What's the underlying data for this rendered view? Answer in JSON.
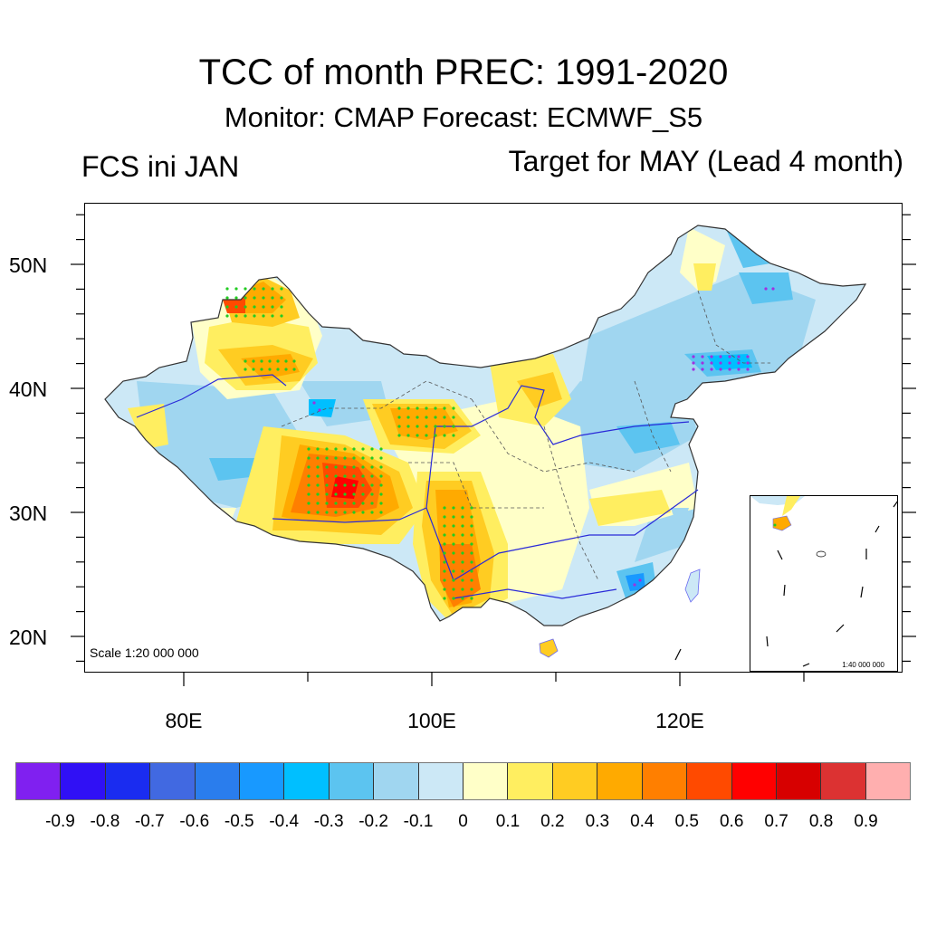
{
  "title": {
    "main": "TCC of month PREC: 1991-2020",
    "subtitle": "Monitor: CMAP   Forecast: ECMWF_S5",
    "left_label": "FCS ini JAN",
    "right_label": "Target for MAY (Lead 4 month)"
  },
  "map": {
    "region": "China",
    "scale_main": "Scale 1:20 000 000",
    "scale_inset": "1:40 000 000",
    "lat_labels": [
      "50N",
      "40N",
      "30N",
      "20N"
    ],
    "lon_labels": [
      "80E",
      "100E",
      "120E"
    ],
    "significance_markers": {
      "positive": "green dots",
      "negative": "purple dots",
      "positive_color": "#22cc22",
      "negative_color": "#a030e0"
    },
    "river_color": "#2a2ad8",
    "boundary_color": "#333333"
  },
  "colorbar": {
    "colors": [
      "#8020f0",
      "#3010f5",
      "#1a2cf0",
      "#4169e1",
      "#2a7ded",
      "#1899ff",
      "#00bfff",
      "#5cc4f0",
      "#a0d6f0",
      "#cce8f6",
      "#ffffc8",
      "#ffee60",
      "#ffcc22",
      "#ffaa00",
      "#ff7f00",
      "#ff4a00",
      "#ff0000",
      "#d70000",
      "#dc3232",
      "#ffafaf"
    ],
    "labels": [
      "-0.9",
      "-0.8",
      "-0.7",
      "-0.6",
      "-0.5",
      "-0.4",
      "-0.3",
      "-0.2",
      "-0.1",
      "0",
      "0.1",
      "0.2",
      "0.3",
      "0.4",
      "0.5",
      "0.6",
      "0.7",
      "0.8",
      "0.9"
    ]
  }
}
